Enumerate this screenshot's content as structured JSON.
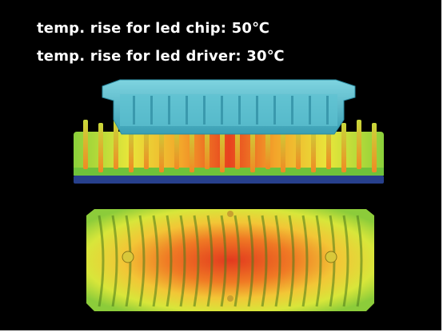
{
  "captions": {
    "chip_rise": "temp. rise for led chip: 50℃",
    "driver_rise": "temp. rise for led driver: 30℃"
  },
  "colors": {
    "background": "#000000",
    "driver_housing": "#4fb6c8",
    "heat_hot": "#e8361c",
    "heat_warm": "#f0a020",
    "heat_mid": "#e6e632",
    "heat_cool": "#7ec83a",
    "base_plate": "#27408c"
  },
  "icons": {
    "assembly": "heat-sink-thermal-simulation"
  }
}
